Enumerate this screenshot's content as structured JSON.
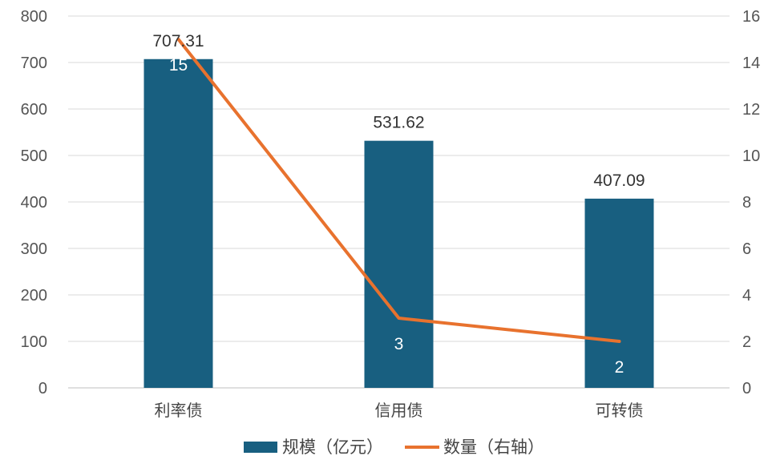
{
  "chart_data": {
    "type": "bar",
    "categories": [
      "利率债",
      "信用债",
      "可转债"
    ],
    "series": [
      {
        "name": "规模（亿元）",
        "type": "bar",
        "axis": "left",
        "values": [
          707.31,
          531.62,
          407.09
        ],
        "color": "#185F80",
        "labels": [
          "707.31",
          "531.62",
          "407.09"
        ]
      },
      {
        "name": "数量（右轴）",
        "type": "line",
        "axis": "right",
        "values": [
          15,
          3,
          2
        ],
        "color": "#E8722E",
        "labels": [
          "15",
          "3",
          "2"
        ]
      }
    ],
    "y_left": {
      "ylim": [
        0,
        800
      ],
      "ticks": [
        0,
        100,
        200,
        300,
        400,
        500,
        600,
        700,
        800
      ],
      "tick_labels": [
        "0",
        "100",
        "200",
        "300",
        "400",
        "500",
        "600",
        "700",
        "800"
      ]
    },
    "y_right": {
      "ylim": [
        0,
        16
      ],
      "ticks": [
        0,
        2,
        4,
        6,
        8,
        10,
        12,
        14,
        16
      ],
      "tick_labels": [
        "0",
        "2",
        "4",
        "6",
        "8",
        "10",
        "12",
        "14",
        "16"
      ]
    },
    "grid": true,
    "legend_position": "bottom"
  }
}
